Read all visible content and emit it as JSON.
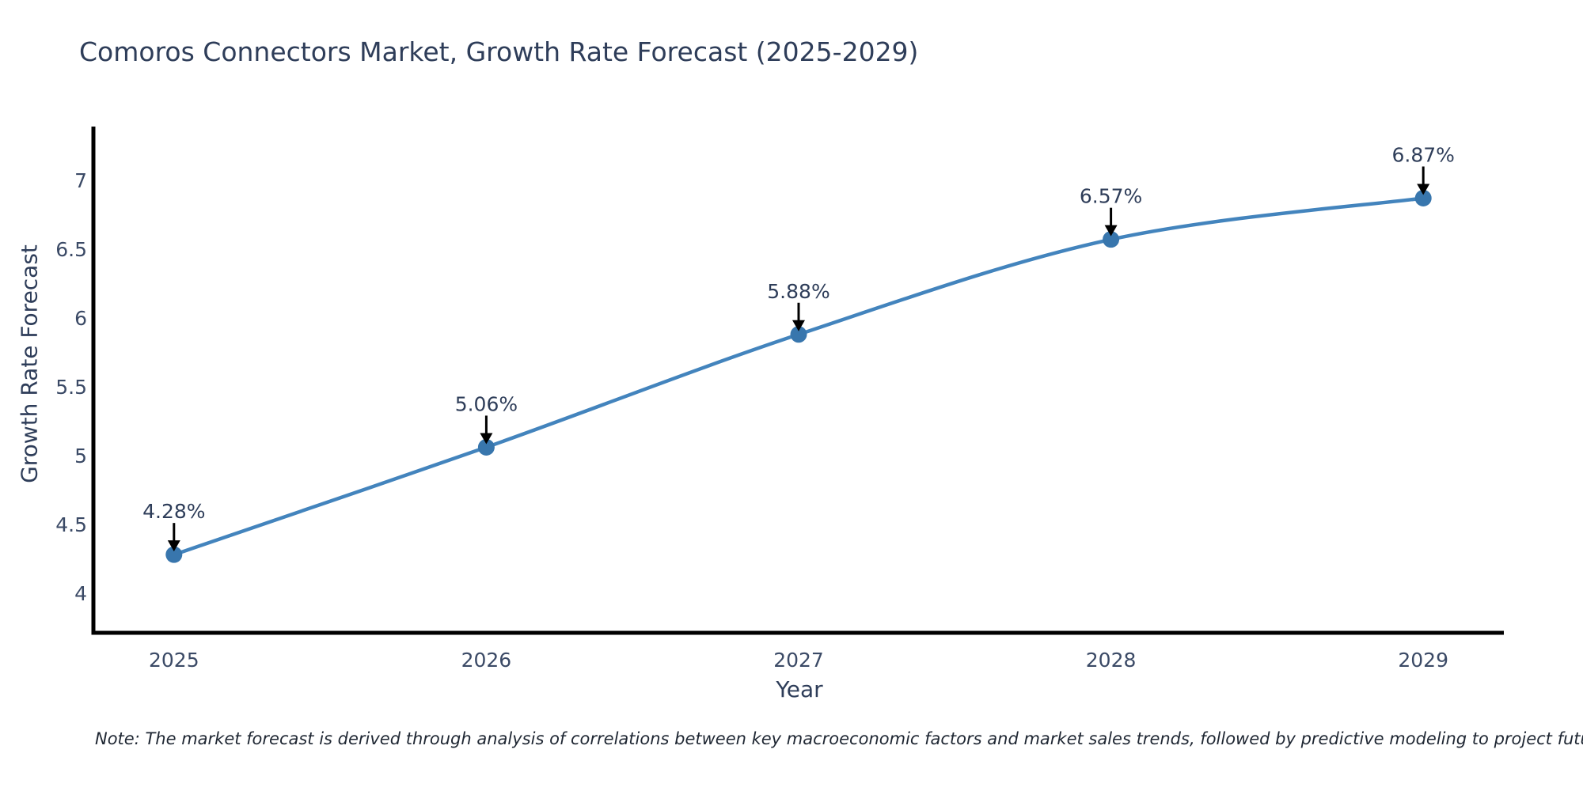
{
  "chart_data": {
    "type": "line",
    "title": "Comoros Connectors Market, Growth Rate Forecast (2025-2029)",
    "xlabel": "Year",
    "ylabel": "Growth Rate Forecast",
    "x": [
      2025,
      2026,
      2027,
      2028,
      2029
    ],
    "values": [
      4.28,
      5.06,
      5.88,
      6.57,
      6.87
    ],
    "point_labels": [
      "4.28%",
      "5.06%",
      "5.88%",
      "6.57%",
      "6.87%"
    ],
    "xtick_labels": [
      "2025",
      "2026",
      "2027",
      "2028",
      "2029"
    ],
    "ytick_values": [
      4,
      4.5,
      5,
      5.5,
      6,
      6.5,
      7
    ],
    "ytick_labels": [
      "4",
      "4.5",
      "5",
      "5.5",
      "6",
      "6.5",
      "7"
    ],
    "xlim": [
      2024.742,
      2029.258
    ],
    "ylim": [
      3.712,
      7.39
    ],
    "grid": false,
    "legend": "none",
    "line_color": "#4384bd",
    "marker_color": "#3876ad",
    "axis_color": "#000000",
    "arrow_color": "#000000",
    "text_color": "#2e3d59",
    "tick_color": "#3b4a66"
  },
  "note": {
    "text": "Note: The market forecast is derived through analysis of correlations between key macroeconomic factors and market sales trends, followed by predictive modeling to project future sales"
  }
}
